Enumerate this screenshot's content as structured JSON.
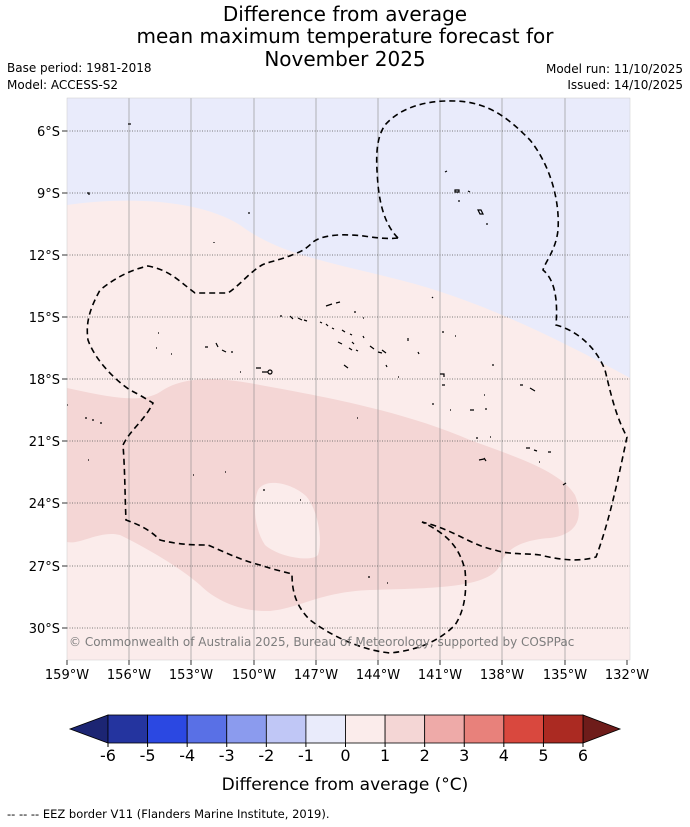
{
  "title": {
    "line1": "Difference from average",
    "line2": "mean maximum temperature forecast for",
    "line3": "November 2025"
  },
  "meta": {
    "base_period": "Base period: 1981-2018",
    "model": "Model: ACCESS-S2",
    "model_run": "Model run: 11/10/2025",
    "issued": "Issued: 14/10/2025"
  },
  "map": {
    "lat_labels": [
      "6°S",
      "9°S",
      "12°S",
      "15°S",
      "18°S",
      "21°S",
      "24°S",
      "27°S",
      "30°S"
    ],
    "lon_labels": [
      "159°W",
      "156°W",
      "153°W",
      "150°W",
      "147°W",
      "144°W",
      "141°W",
      "138°W",
      "135°W",
      "132°W"
    ],
    "copyright": "© Commonwealth of Australia 2025, Bureau of Meteorology, supported by COSPPac",
    "fill_colors": {
      "minus_1_to_0": "#e9ebfb",
      "0_to_1": "#fbeceb",
      "1_to_2": "#f4d6d5"
    }
  },
  "colorbar": {
    "ticks": [
      "-6",
      "-5",
      "-4",
      "-3",
      "-2",
      "-1",
      "0",
      "1",
      "2",
      "3",
      "4",
      "5",
      "6"
    ],
    "colors": [
      "#24349f",
      "#2b48e2",
      "#5970e6",
      "#8b9bee",
      "#c0c7f6",
      "#e9ebfb",
      "#fbeceb",
      "#f4d6d5",
      "#eeaaa8",
      "#e8817b",
      "#d9483e",
      "#ab2a22"
    ],
    "under_color": "#1c2573",
    "over_color": "#6e1c1a",
    "label": "Difference from average (°C)"
  },
  "footer": {
    "legend": "--  --  -- EEZ border V11 (Flanders Marine Institute, 2019)."
  }
}
